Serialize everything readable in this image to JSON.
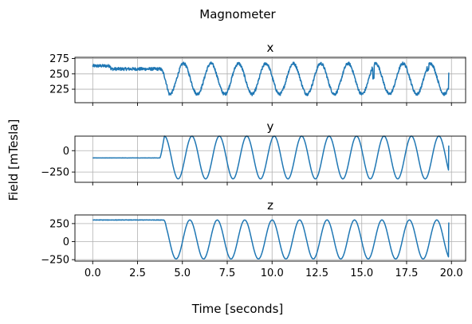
{
  "figure": {
    "title": "Magnometer",
    "xlabel": "Time [seconds]",
    "ylabel": "Field [mTesla]"
  },
  "chart_data": [
    {
      "type": "line",
      "title": "x",
      "xlim": [
        -0.99,
        20.79
      ],
      "ylim": [
        203,
        277
      ],
      "xticks": [
        0,
        2.5,
        5,
        7.5,
        10,
        12.5,
        15,
        17.5,
        20
      ],
      "xtick_labels_visible": false,
      "yticks": [
        225,
        250,
        275
      ],
      "ytick_labels": [
        "225",
        "250",
        "275"
      ],
      "grid": true,
      "color": "#1f77b4",
      "series": [
        {
          "x_range": [
            0,
            19.85
          ],
          "phase1_end": 3.75,
          "phase1_level": 262,
          "phase1_level_after_1s": 258,
          "oscillation_center": 242,
          "oscillation_amplitude": 25,
          "period": 1.53,
          "first_trough": 4.3,
          "end_value": 252,
          "noise": 2.5
        }
      ]
    },
    {
      "type": "line",
      "title": "y",
      "xlim": [
        -0.99,
        20.79
      ],
      "ylim": [
        -370,
        170
      ],
      "xticks": [
        0,
        2.5,
        5,
        7.5,
        10,
        12.5,
        15,
        17.5,
        20
      ],
      "xtick_labels_visible": false,
      "yticks": [
        -250,
        0
      ],
      "ytick_labels": [
        "−250",
        "0"
      ],
      "grid": true,
      "color": "#1f77b4",
      "series": [
        {
          "x_range": [
            0,
            19.85
          ],
          "phase1_end": 3.75,
          "phase1_level": -85,
          "oscillation_center": -80,
          "oscillation_amplitude": 250,
          "period": 1.53,
          "first_peak": 4.0,
          "end_value": 60,
          "noise": 2
        }
      ]
    },
    {
      "type": "line",
      "title": "z",
      "xlim": [
        -0.99,
        20.79
      ],
      "ylim": [
        -270,
        370
      ],
      "xticks": [
        0,
        2.5,
        5,
        7.5,
        10,
        12.5,
        15,
        17.5,
        20
      ],
      "xtick_labels": [
        "0.0",
        "2.5",
        "5.0",
        "7.5",
        "10.0",
        "12.5",
        "15.0",
        "17.5",
        "20.0"
      ],
      "xtick_labels_visible": true,
      "yticks": [
        -250,
        0,
        250
      ],
      "ytick_labels": [
        "−250",
        "0",
        "250"
      ],
      "grid": true,
      "color": "#1f77b4",
      "series": [
        {
          "x_range": [
            0,
            19.85
          ],
          "phase1_end": 3.95,
          "phase1_level": 300,
          "oscillation_center": 30,
          "oscillation_amplitude": 270,
          "period": 1.53,
          "first_trough": 4.65,
          "end_value": 265,
          "noise": 3
        }
      ]
    }
  ]
}
